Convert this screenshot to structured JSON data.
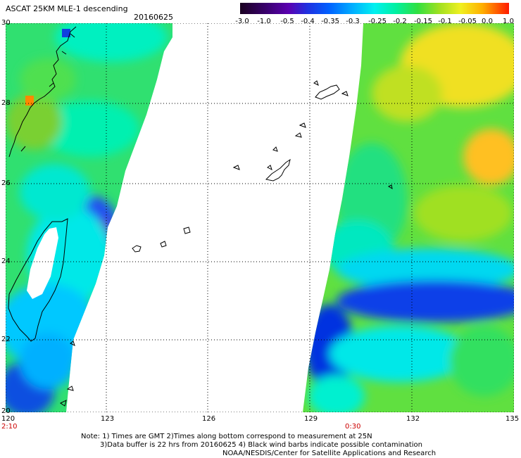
{
  "header": {
    "title": "ASCAT 25KM MLE-1 descending",
    "date": "20160625"
  },
  "colorbar": {
    "tick_labels": [
      "-3.0",
      "-1.0",
      "-0.5",
      "-0.4",
      "-0.35",
      "-0.3",
      "-0.25",
      "-0.2",
      "-0.15",
      "-0.1",
      "-0.05",
      "0.0",
      "1.0"
    ],
    "colors": [
      "#2a0030",
      "#5a00a0",
      "#1f2bd8",
      "#0060ff",
      "#00b0ff",
      "#00f0f0",
      "#00f0a0",
      "#30e040",
      "#a0e020",
      "#f0f020",
      "#ffb000",
      "#ff5000",
      "#ff0000"
    ]
  },
  "map": {
    "lat_labels": [
      "30",
      "28",
      "26",
      "24",
      "22",
      "20"
    ],
    "lon_labels": [
      "120",
      "123",
      "126",
      "129",
      "132",
      "135"
    ],
    "time_labels": [
      "2:10",
      "0:30"
    ],
    "grid_style": "dotted",
    "land_outline_color": "#000000",
    "no_data_color": "#ffffff"
  },
  "footer": {
    "line1": "Note: 1) Times are GMT 2)Times along bottom correspond to measurement at 25N",
    "line2": "3)Data buffer is 22 hrs from 20160625 4) Black wind barbs indicate possible contamination",
    "line3": "NOAA/NESDIS/Center for Satellite Applications and Research"
  }
}
